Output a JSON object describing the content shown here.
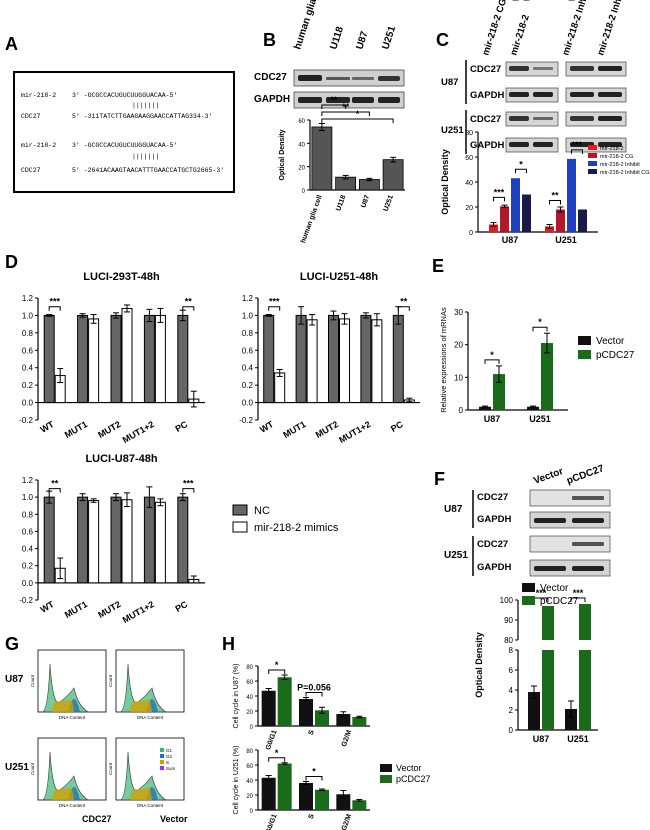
{
  "panels": {
    "A": "A",
    "B": "B",
    "C": "C",
    "D": "D",
    "E": "E",
    "F": "F",
    "G": "G",
    "H": "H"
  },
  "panelA": {
    "lines": [
      {
        "label": "mir-218-2",
        "seq": "3'  -GCGCCACUGUCUUGGUACAA-5'"
      },
      {
        "label": "",
        "seq": "|||||||"
      },
      {
        "label": "CDC27",
        "seq": "5'  -311TATCTTGAAGAAGGAACCATTAG334-3'"
      },
      {
        "label": "mir-218-2",
        "seq": "3'  -GCGCCACUGUCUUGGUACAA-5'"
      },
      {
        "label": "",
        "seq": "|||||||"
      },
      {
        "label": "CDC27",
        "seq": "5'  -2641ACAAGTAACATTTGAACCATGCTG2665-3'"
      }
    ]
  },
  "panelB": {
    "blot_labels": [
      "CDC27",
      "GAPDH"
    ],
    "lanes": [
      "human glia cell",
      "U118",
      "U87",
      "U251"
    ],
    "chart_data": {
      "type": "bar",
      "categories": [
        "human glia cell",
        "U118",
        "U87",
        "U251"
      ],
      "values": [
        54,
        11,
        9,
        26
      ],
      "errors": [
        3,
        1.5,
        1,
        2
      ],
      "ylabel": "Optical Density",
      "ylim": [
        0,
        60
      ],
      "yticks": [
        "0",
        "20",
        "40",
        "60"
      ],
      "significance": [
        {
          "from": 0,
          "to": 1,
          "label": "**"
        },
        {
          "from": 0,
          "to": 2,
          "label": "**"
        },
        {
          "from": 0,
          "to": 3,
          "label": "*"
        }
      ]
    }
  },
  "panelC": {
    "columns": [
      "mir-218-2 CG",
      "mir-218-2",
      "mir-218-2 Inhibit CG",
      "mir-218-2 Inhibit"
    ],
    "rows": [
      {
        "cell": "U87",
        "blots": [
          "CDC27",
          "GAPDH"
        ]
      },
      {
        "cell": "U251",
        "blots": [
          "CDC27",
          "GAPDH"
        ]
      }
    ],
    "chart_data": {
      "type": "bar",
      "categories": [
        "U87",
        "U251"
      ],
      "series": [
        {
          "name": "mir-218-2",
          "color": "#e41a1c",
          "values": [
            6,
            4.5
          ]
        },
        {
          "name": "mir-218-2 CG",
          "color": "#b2182b",
          "values": [
            20.5,
            18
          ]
        },
        {
          "name": "mir-218-2 Inhibit",
          "color": "#1f3fbf",
          "values": [
            43,
            58.5
          ]
        },
        {
          "name": "mir-218-2 Inhibit CG",
          "color": "#1a1a4a",
          "values": [
            30,
            18
          ]
        }
      ],
      "errors": [
        [
          1.5,
          1
        ],
        [
          1.5,
          2
        ],
        [
          2,
          2
        ],
        [
          3,
          1
        ]
      ],
      "ylabel": "Optical Density",
      "ylim": [
        0,
        80
      ],
      "yticks": [
        "0",
        "20",
        "40",
        "60",
        "80"
      ],
      "significance": [
        {
          "group": 0,
          "from": 0,
          "to": 1,
          "label": "***"
        },
        {
          "group": 0,
          "from": 2,
          "to": 3,
          "label": "*"
        },
        {
          "group": 1,
          "from": 0,
          "to": 1,
          "label": "**"
        },
        {
          "group": 1,
          "from": 2,
          "to": 3,
          "label": "***"
        }
      ]
    }
  },
  "panelD": {
    "legend": [
      {
        "name": "NC",
        "color": "#666666"
      },
      {
        "name": "mir-218-2 mimics",
        "color": "#ffffff"
      }
    ],
    "chart_data": [
      {
        "type": "bar",
        "title": "LUCI-293T-48h",
        "categories": [
          "WT",
          "MUT1",
          "MUT2",
          "MUT1+2",
          "PC"
        ],
        "series": [
          {
            "name": "NC",
            "values": [
              1.0,
              1.0,
              1.0,
              1.0,
              1.0
            ]
          },
          {
            "name": "mir-218-2 mimics",
            "values": [
              0.31,
              0.96,
              1.08,
              1.0,
              0.04
            ]
          }
        ],
        "errors": [
          [
            0.01,
            0.02,
            0.03,
            0.07,
            0.06
          ],
          [
            0.08,
            0.05,
            0.04,
            0.08,
            0.09
          ]
        ],
        "ylim": [
          -0.2,
          1.2
        ],
        "yticks": [
          "-0.2",
          "0.0",
          "0.2",
          "0.4",
          "0.6",
          "0.8",
          "1.0",
          "1.2"
        ],
        "significance": [
          {
            "cat": 0,
            "label": "***"
          },
          {
            "cat": 4,
            "label": "**"
          }
        ]
      },
      {
        "type": "bar",
        "title": "LUCI-U251-48h",
        "categories": [
          "WT",
          "MUT1",
          "MUT2",
          "MUT1+2",
          "PC"
        ],
        "series": [
          {
            "name": "NC",
            "values": [
              1.0,
              1.0,
              1.0,
              1.0,
              1.0
            ]
          },
          {
            "name": "mir-218-2 mimics",
            "values": [
              0.34,
              0.95,
              0.96,
              0.95,
              0.03
            ]
          }
        ],
        "errors": [
          [
            0.01,
            0.1,
            0.05,
            0.03,
            0.1
          ],
          [
            0.04,
            0.06,
            0.06,
            0.07,
            0.02
          ]
        ],
        "ylim": [
          -0.2,
          1.2
        ],
        "yticks": [
          "-0.2",
          "0.0",
          "0.2",
          "0.4",
          "0.6",
          "0.8",
          "1.0",
          "1.2"
        ],
        "significance": [
          {
            "cat": 0,
            "label": "***"
          },
          {
            "cat": 4,
            "label": "**"
          }
        ]
      },
      {
        "type": "bar",
        "title": "LUCI-U87-48h",
        "categories": [
          "WT",
          "MUT1",
          "MUT2",
          "MUT1+2",
          "PC"
        ],
        "series": [
          {
            "name": "NC",
            "values": [
              1.0,
              1.0,
              1.0,
              1.0,
              1.0
            ]
          },
          {
            "name": "mir-218-2 mimics",
            "values": [
              0.17,
              0.96,
              0.97,
              0.94,
              0.04
            ]
          }
        ],
        "errors": [
          [
            0.07,
            0.04,
            0.04,
            0.12,
            0.04
          ],
          [
            0.12,
            0.02,
            0.08,
            0.04,
            0.04
          ]
        ],
        "ylim": [
          -0.2,
          1.2
        ],
        "yticks": [
          "-0.2",
          "0.0",
          "0.2",
          "0.4",
          "0.6",
          "0.8",
          "1.0",
          "1.2"
        ],
        "significance": [
          {
            "cat": 0,
            "label": "**"
          },
          {
            "cat": 4,
            "label": "***"
          }
        ]
      }
    ]
  },
  "panelE": {
    "chart_data": {
      "type": "bar",
      "categories": [
        "U87",
        "U251"
      ],
      "series": [
        {
          "name": "Vector",
          "color": "#111111",
          "values": [
            1,
            1
          ]
        },
        {
          "name": "pCDC27",
          "color": "#1a6b1a",
          "values": [
            11,
            20.5
          ]
        }
      ],
      "errors": [
        [
          0.2,
          0.2
        ],
        [
          2.5,
          3
        ]
      ],
      "ylabel": "Relative expressions of mRNAs",
      "ylim": [
        0,
        30
      ],
      "yticks": [
        "0",
        "10",
        "20",
        "30"
      ],
      "significance": [
        {
          "group": 0,
          "label": "*"
        },
        {
          "group": 1,
          "label": "*"
        }
      ]
    }
  },
  "panelF": {
    "columns": [
      "Vector",
      "pCDC27"
    ],
    "rows": [
      {
        "cell": "U87",
        "blots": [
          "CDC27",
          "GAPDH"
        ]
      },
      {
        "cell": "U251",
        "blots": [
          "CDC27",
          "GAPDH"
        ]
      }
    ],
    "chart_data": {
      "type": "bar",
      "categories": [
        "U87",
        "U251"
      ],
      "series": [
        {
          "name": "Vector",
          "color": "#111111",
          "values": [
            3.8,
            2.1
          ]
        },
        {
          "name": "pCDC27",
          "color": "#1a6b1a",
          "values": [
            97,
            98
          ]
        }
      ],
      "errors": [
        [
          0.6,
          0.8
        ],
        [
          1,
          1
        ]
      ],
      "ylabel": "Optical Density",
      "ylim": [
        0,
        100
      ],
      "yticks": [
        "0",
        "2",
        "4",
        "6",
        "8",
        "80",
        "90",
        "100"
      ],
      "axis_break": [
        8,
        80
      ],
      "significance": [
        {
          "group": 0,
          "label": "***"
        },
        {
          "group": 1,
          "label": "***"
        }
      ]
    }
  },
  "panelG": {
    "rows": [
      "U87",
      "U251"
    ],
    "columns": [
      "CDC27",
      "Vector"
    ],
    "xlabel": "DNA Content",
    "ylabel": "Count",
    "legend": [
      "G1",
      "G2",
      "S",
      "Sum"
    ],
    "legend_colors": [
      "#3cb371",
      "#1f77b4",
      "#d4a000",
      "#9b30ff"
    ]
  },
  "panelH": {
    "chart_data": [
      {
        "type": "bar",
        "categories": [
          "G0/G1",
          "S",
          "G2/M"
        ],
        "series": [
          {
            "name": "Vector",
            "color": "#111111",
            "values": [
              47,
              36,
              16
            ]
          },
          {
            "name": "pCDC27",
            "color": "#1a6b1a",
            "values": [
              65,
              21,
              12
            ]
          }
        ],
        "errors": [
          [
            3,
            2,
            3
          ],
          [
            3,
            4,
            1
          ]
        ],
        "ylabel": "Cell cycle in U87 (%)",
        "ylim": [
          0,
          80
        ],
        "yticks": [
          "0",
          "20",
          "40",
          "60",
          "80"
        ],
        "significance": [
          {
            "cat": 0,
            "label": "*"
          },
          {
            "cat": 1,
            "label": "P=0.056"
          }
        ]
      },
      {
        "type": "bar",
        "categories": [
          "G0/G1",
          "S",
          "G2/M"
        ],
        "series": [
          {
            "name": "Vector",
            "color": "#111111",
            "values": [
              43,
              36,
              21
            ]
          },
          {
            "name": "pCDC27",
            "color": "#1a6b1a",
            "values": [
              62,
              27,
              13
            ]
          }
        ],
        "errors": [
          [
            3,
            2,
            5
          ],
          [
            1,
            1,
            1
          ]
        ],
        "ylabel": "Cell cycle in U251 (%)",
        "ylim": [
          0,
          80
        ],
        "yticks": [
          "0",
          "20",
          "40",
          "60",
          "80"
        ],
        "significance": [
          {
            "cat": 0,
            "label": "*"
          },
          {
            "cat": 1,
            "label": "*"
          }
        ]
      }
    ],
    "legend": [
      "Vector",
      "pCDC27"
    ]
  }
}
